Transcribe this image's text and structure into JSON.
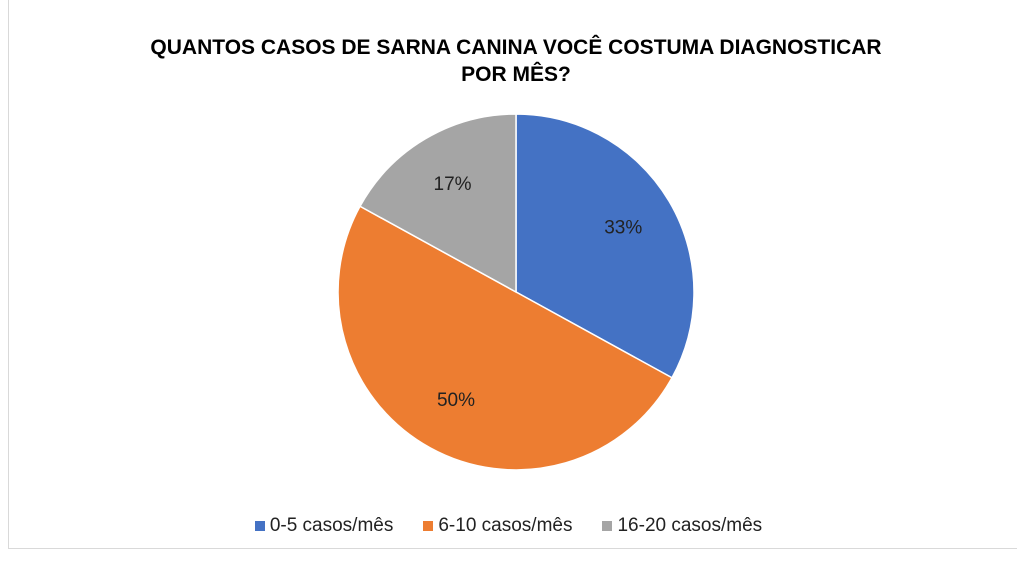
{
  "chart_data": {
    "type": "pie",
    "title": "QUANTOS CASOS DE SARNA CANINA VOCÊ COSTUMA DIAGNOSTICAR POR MÊS?",
    "categories": [
      "0-5 casos/mês",
      "6-10 casos/mês",
      "16-20 casos/mês"
    ],
    "values": [
      33,
      50,
      17
    ],
    "value_labels": [
      "33%",
      "50%",
      "17%"
    ],
    "colors": [
      "#4472c4",
      "#ed7d31",
      "#a5a5a5"
    ],
    "legend": "bottom"
  }
}
